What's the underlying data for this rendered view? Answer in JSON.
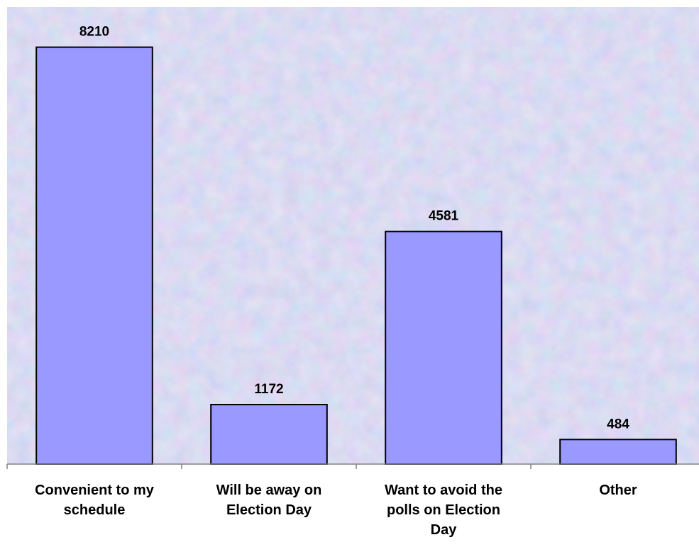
{
  "chart_data": {
    "type": "bar",
    "title": "",
    "xlabel": "",
    "ylabel": "",
    "categories": [
      [
        "Convenient to my",
        "schedule"
      ],
      [
        "Will be away on",
        "Election Day"
      ],
      [
        "Want to avoid the",
        "polls on Election",
        "Day"
      ],
      [
        "Other"
      ]
    ],
    "values": [
      8210,
      1172,
      4581,
      484
    ],
    "data_labels": [
      "8210",
      "1172",
      "4581",
      "484"
    ],
    "ylim": [
      0,
      9000
    ],
    "grid": false,
    "legend": "none",
    "colors": {
      "bar_fill": "#9999ff",
      "bar_stroke": "#000000",
      "axis": "#808080",
      "text": "#000000",
      "background_base": "#c8cdee",
      "background_tint_pink": "#e6c3e0",
      "background_tint_blue": "#a9c6f0"
    }
  }
}
